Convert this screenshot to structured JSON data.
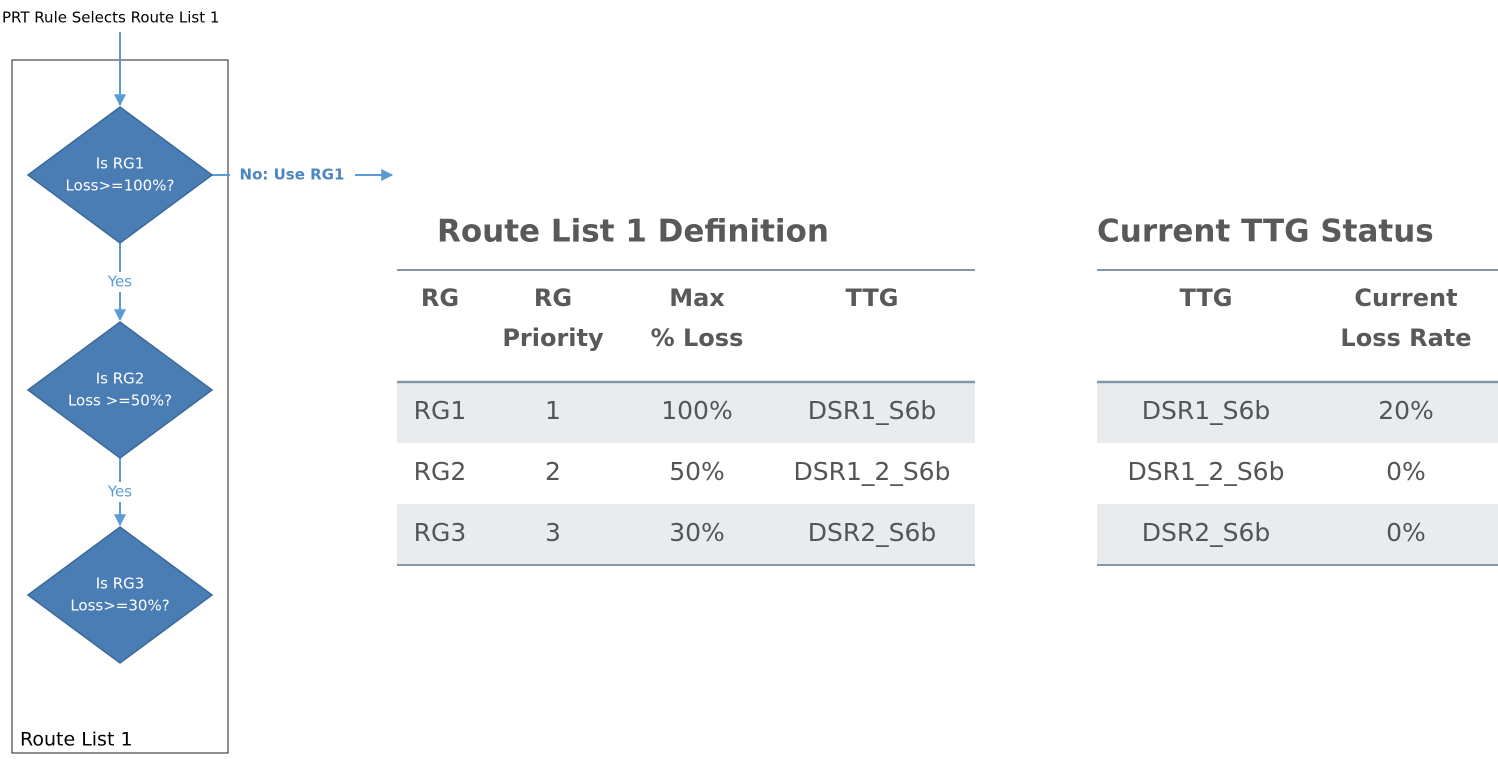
{
  "flowchart": {
    "start_label": "PRT Rule Selects Route List 1",
    "container_label": "Route List 1",
    "nodes": [
      {
        "label": [
          "Is RG1",
          "Loss>=100%?"
        ]
      },
      {
        "label": [
          "Is RG2",
          "Loss >=50%?"
        ]
      },
      {
        "label": [
          "Is RG3",
          "Loss>=30%?"
        ]
      }
    ],
    "edges": [
      "No: Use RG1",
      "Yes",
      "Yes"
    ]
  },
  "route_list_table": {
    "title": "Route List 1 Definition",
    "header": [
      [
        "RG"
      ],
      [
        "RG",
        "Priority"
      ],
      [
        "Max",
        "% Loss"
      ],
      [
        "TTG"
      ]
    ],
    "rows": [
      [
        "RG1",
        "1",
        "100%",
        "DSR1_S6b"
      ],
      [
        "RG2",
        "2",
        "50%",
        "DSR1_2_S6b"
      ],
      [
        "RG3",
        "3",
        "30%",
        "DSR2_S6b"
      ]
    ]
  },
  "ttg_table": {
    "title": "Current TTG Status",
    "header": [
      [
        "TTG"
      ],
      [
        "Current",
        "Loss Rate"
      ]
    ],
    "rows": [
      [
        "DSR1_S6b",
        "20%"
      ],
      [
        "DSR1_2_S6b",
        "0%"
      ],
      [
        "DSR2_S6b",
        "0%"
      ]
    ]
  }
}
